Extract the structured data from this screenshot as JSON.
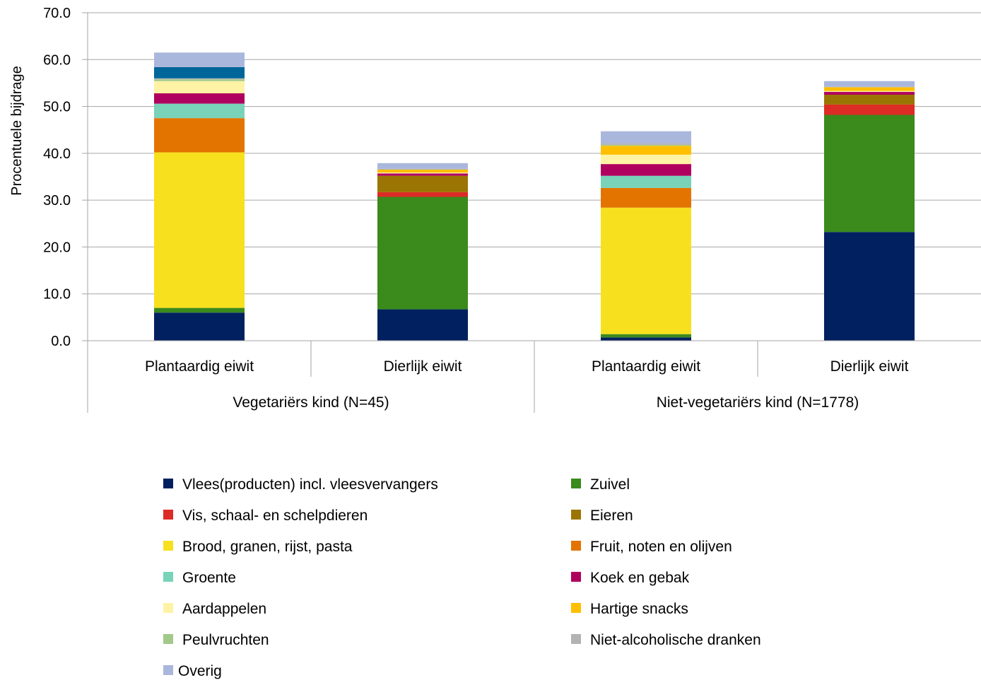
{
  "chart_data": {
    "type": "bar",
    "stacked": true,
    "title": "",
    "xlabel": "",
    "ylabel": "Procentuele bijdrage",
    "ylim": [
      0,
      70
    ],
    "yticks": [
      "0.0",
      "10.0",
      "20.0",
      "30.0",
      "40.0",
      "50.0",
      "60.0",
      "70.0"
    ],
    "grid": true,
    "legend_position": "bottom",
    "groups": [
      {
        "label": "Vegetariërs kind (N=45)",
        "categories": [
          "Plantaardig eiwit",
          "Dierlijk eiwit"
        ]
      },
      {
        "label": "Niet-vegetariërs kind (N=1778)",
        "categories": [
          "Plantaardig eiwit",
          "Dierlijk eiwit"
        ]
      }
    ],
    "categories": [
      "Plantaardig eiwit",
      "Dierlijk eiwit",
      "Plantaardig eiwit",
      "Dierlijk eiwit"
    ],
    "series": [
      {
        "name": "Vlees(producten) incl. vleesvervangers",
        "color": "#002060",
        "values": [
          6.0,
          6.7,
          0.7,
          23.2
        ]
      },
      {
        "name": "Zuivel",
        "color": "#3a8a1c",
        "values": [
          1.0,
          24.0,
          0.7,
          25.0
        ]
      },
      {
        "name": "Vis, schaal- en schelpdieren",
        "color": "#dd2b25",
        "values": [
          0.0,
          1.0,
          0.0,
          2.2
        ]
      },
      {
        "name": "Eieren",
        "color": "#9b7503",
        "values": [
          0.0,
          3.5,
          0.0,
          2.1
        ]
      },
      {
        "name": "Brood, granen, rijst, pasta",
        "color": "#f7e01e",
        "values": [
          33.2,
          0.0,
          27.0,
          0.0
        ]
      },
      {
        "name": "Fruit, noten en olijven",
        "color": "#e37400",
        "values": [
          7.3,
          0.0,
          4.2,
          0.0
        ]
      },
      {
        "name": "Groente",
        "color": "#78d3b8",
        "values": [
          3.1,
          0.0,
          2.6,
          0.0
        ]
      },
      {
        "name": "Koek en gebak",
        "color": "#b0005f",
        "values": [
          2.2,
          0.5,
          2.5,
          0.6
        ]
      },
      {
        "name": "Aardappelen",
        "color": "#fef3a5",
        "values": [
          2.6,
          0.2,
          2.0,
          0.2
        ]
      },
      {
        "name": "Hartige snacks",
        "color": "#ffbf00",
        "values": [
          0.0,
          0.6,
          1.9,
          0.8
        ]
      },
      {
        "name": "Peulvruchten",
        "color": "#a3c98a",
        "values": [
          0.4,
          0.0,
          0.2,
          0.0
        ]
      },
      {
        "name": "Niet-alcoholische dranken",
        "color": "#b3b3b3",
        "values": [
          0.2,
          0.2,
          0.3,
          0.1
        ]
      },
      {
        "name": "",
        "color": "#006699",
        "values": [
          2.4,
          0.0,
          0.0,
          0.0
        ]
      },
      {
        "name": "Overig",
        "color": "#aab7dc",
        "values": [
          3.1,
          1.2,
          2.6,
          1.2
        ]
      }
    ]
  }
}
